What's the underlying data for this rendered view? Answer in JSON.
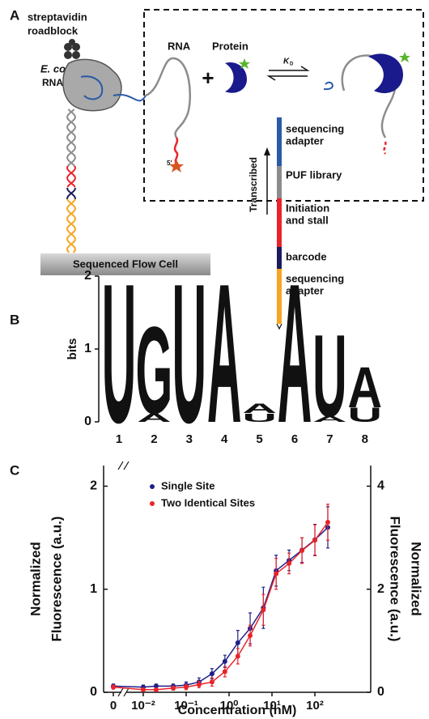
{
  "panel_a": {
    "label": "A",
    "roadblock": [
      "streptavidin",
      "roadblock"
    ],
    "rnap": [
      "E. coli",
      "RNAP"
    ],
    "rna": "RNA",
    "plus": "+",
    "protein": "Protein",
    "kd": {
      "symbol": "K",
      "subscript": "D"
    },
    "five_prime": "5'",
    "flow_cell": "Sequenced Flow Cell",
    "transcribed": "Transcribed",
    "segments": [
      {
        "label": [
          "sequencing",
          "adapter"
        ],
        "color": "#2a5aa8"
      },
      {
        "label": [
          "PUF library"
        ],
        "color": "#8c8c8c"
      },
      {
        "label": [
          "Initiation",
          "and stall"
        ],
        "color": "#e8242a"
      },
      {
        "label": [
          "barcode"
        ],
        "color": "#1b1b5e"
      },
      {
        "label": [
          "sequencing",
          "adapter"
        ],
        "color": "#f5a623"
      }
    ]
  },
  "chart_data": [
    {
      "panel": "B",
      "type": "logo",
      "ylabel": "bits",
      "ylim": [
        0,
        2
      ],
      "yticks": [
        0,
        1,
        2
      ],
      "categories": [
        "1",
        "2",
        "3",
        "4",
        "5",
        "6",
        "7",
        "8"
      ],
      "stacks": [
        [
          {
            "letter": "U",
            "bits": 1.95,
            "color": "#5ba829"
          }
        ],
        [
          {
            "letter": "A",
            "bits": 0.12,
            "color": "#ee1c24"
          },
          {
            "letter": "G",
            "bits": 1.22,
            "color": "#f7931e"
          }
        ],
        [
          {
            "letter": "U",
            "bits": 1.95,
            "color": "#5ba829"
          }
        ],
        [
          {
            "letter": "A",
            "bits": 1.95,
            "color": "#ee1c24"
          }
        ],
        [
          {
            "letter": "U",
            "bits": 0.12,
            "color": "#5ba829"
          },
          {
            "letter": "A",
            "bits": 0.13,
            "color": "#ee1c24"
          }
        ],
        [
          {
            "letter": "A",
            "bits": 1.95,
            "color": "#ee1c24"
          }
        ],
        [
          {
            "letter": "A",
            "bits": 0.08,
            "color": "#ee1c24"
          },
          {
            "letter": "U",
            "bits": 1.15,
            "color": "#5ba829"
          }
        ],
        [
          {
            "letter": "U",
            "bits": 0.2,
            "color": "#5ba829"
          },
          {
            "letter": "A",
            "bits": 0.57,
            "color": "#ee1c24"
          }
        ]
      ]
    },
    {
      "panel": "C",
      "type": "scatter",
      "xlabel": "Concentration (nM)",
      "ylabel": [
        "Normalized",
        "Fluorescence (a.u.)"
      ],
      "y2label": [
        "Normalized",
        "Fluorescence (a.u.)"
      ],
      "log_x": true,
      "legend": "upper left",
      "x": [
        0,
        0.01,
        0.02,
        0.05,
        0.1,
        0.2,
        0.4,
        0.8,
        1.6,
        3.1,
        6.3,
        12.5,
        25,
        50,
        100,
        200
      ],
      "xlim": [
        0.005,
        2000
      ],
      "xticks": [
        0,
        {
          "value": 0.01,
          "label": "10⁻²"
        },
        {
          "value": 0.1,
          "label": "10⁻¹"
        },
        {
          "value": 1,
          "label": "10⁰"
        },
        {
          "value": 10,
          "label": "10¹"
        },
        {
          "value": 100,
          "label": "10²"
        }
      ],
      "ylim": [
        0,
        2.2
      ],
      "yticks": [
        0,
        1,
        2
      ],
      "y2lim": [
        0,
        4.4
      ],
      "y2ticks": [
        0,
        2,
        4
      ],
      "series": [
        {
          "name": "Single Site",
          "color": "#1f1f8a",
          "values": [
            0.06,
            0.05,
            0.06,
            0.06,
            0.07,
            0.1,
            0.18,
            0.3,
            0.48,
            0.62,
            0.82,
            1.18,
            1.28,
            1.38,
            1.48,
            1.6
          ],
          "errors": [
            0.02,
            0.02,
            0.02,
            0.02,
            0.03,
            0.04,
            0.05,
            0.06,
            0.12,
            0.15,
            0.2,
            0.15,
            0.1,
            0.12,
            0.15,
            0.2
          ]
        },
        {
          "name": "Two Identical Sites",
          "color": "#e8242a",
          "axis": "y2",
          "values": [
            0.1,
            0.05,
            0.05,
            0.08,
            0.1,
            0.15,
            0.2,
            0.4,
            0.7,
            1.1,
            1.6,
            2.3,
            2.5,
            2.75,
            2.95,
            3.3
          ],
          "errors": [
            0.04,
            0.03,
            0.03,
            0.04,
            0.05,
            0.06,
            0.08,
            0.1,
            0.15,
            0.2,
            0.3,
            0.3,
            0.2,
            0.25,
            0.3,
            0.35
          ]
        }
      ]
    }
  ]
}
